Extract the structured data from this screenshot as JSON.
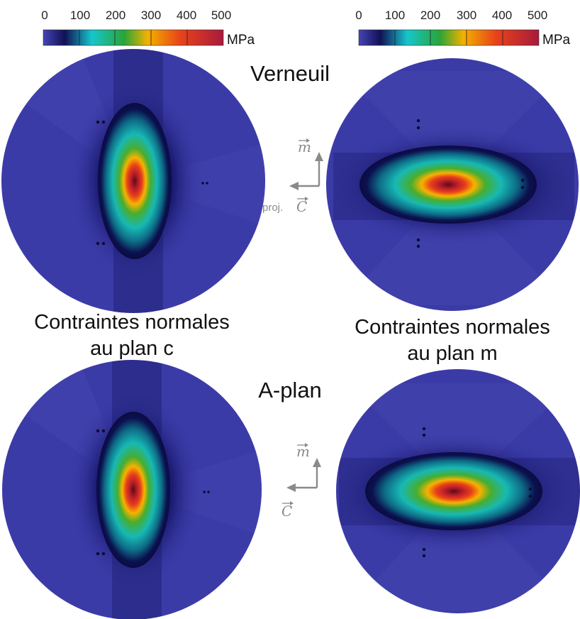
{
  "colorbar": {
    "ticks": [
      "0",
      "100",
      "200",
      "300",
      "400",
      "500"
    ],
    "unit": "MPa",
    "colors": [
      "#3b3ba8",
      "#0b0b4a",
      "#14c4c8",
      "#27a532",
      "#f2b000",
      "#e63a1a",
      "#b71d3a"
    ]
  },
  "titles": {
    "top": "Verneuil",
    "bottom": "A-plan"
  },
  "captions": {
    "left_line1": "Contraintes normales",
    "left_line2": "au plan c",
    "right_line1": "Contraintes normales",
    "right_line2": "au plan m"
  },
  "axes_top": {
    "vertical": "m",
    "horizontal_prefix": "proj.",
    "horizontal": "C"
  },
  "axes_bottom": {
    "vertical": "m",
    "horizontal": "C"
  },
  "colors": {
    "background_disc": "#3b3ba8",
    "arrow": "#8a8a8a"
  }
}
